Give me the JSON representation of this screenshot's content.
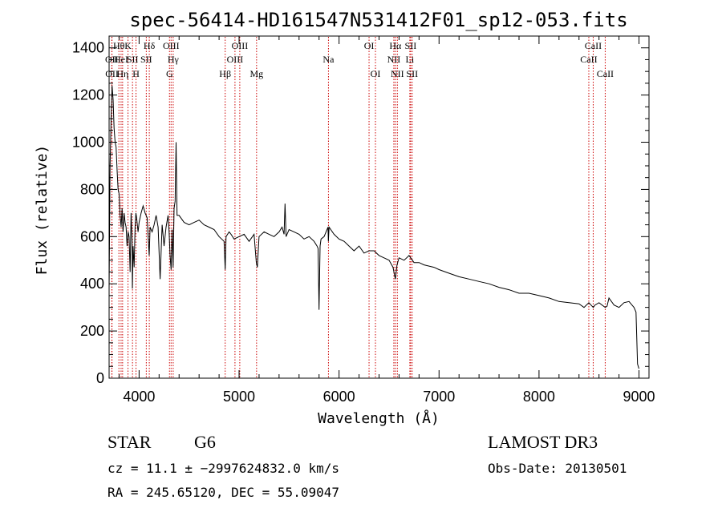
{
  "chart_data": {
    "type": "line",
    "title": "spec-56414-HD161547N531412F01_sp12-053.fits",
    "xlabel": "Wavelength (Å)",
    "ylabel": "Flux (relative)",
    "xlim": [
      3700,
      9100
    ],
    "ylim": [
      0,
      1450
    ],
    "xticks": [
      4000,
      5000,
      6000,
      7000,
      8000,
      9000
    ],
    "yticks": [
      0,
      200,
      400,
      600,
      800,
      1000,
      1200,
      1400
    ],
    "grid": false,
    "line_color": "#000000",
    "marker_color": "#cc0000",
    "spectrum": {
      "x": [
        3700,
        3710,
        3720,
        3730,
        3740,
        3750,
        3760,
        3770,
        3780,
        3790,
        3800,
        3810,
        3820,
        3830,
        3840,
        3850,
        3860,
        3870,
        3880,
        3890,
        3900,
        3910,
        3920,
        3930,
        3933,
        3940,
        3950,
        3960,
        3968,
        3975,
        3990,
        4000,
        4020,
        4040,
        4060,
        4080,
        4101,
        4110,
        4130,
        4150,
        4170,
        4190,
        4210,
        4230,
        4250,
        4270,
        4290,
        4300,
        4310,
        4320,
        4330,
        4340,
        4350,
        4360,
        4370,
        4380,
        4400,
        4450,
        4500,
        4550,
        4600,
        4650,
        4700,
        4750,
        4800,
        4850,
        4861,
        4870,
        4900,
        4920,
        4950,
        5000,
        5050,
        5100,
        5150,
        5172,
        5183,
        5200,
        5250,
        5300,
        5350,
        5400,
        5430,
        5450,
        5460,
        5470,
        5500,
        5550,
        5600,
        5650,
        5700,
        5750,
        5780,
        5790,
        5800,
        5810,
        5820,
        5850,
        5890,
        5893,
        5900,
        5950,
        6000,
        6050,
        6100,
        6150,
        6200,
        6250,
        6300,
        6350,
        6400,
        6450,
        6500,
        6540,
        6563,
        6580,
        6600,
        6650,
        6700,
        6750,
        6800,
        6850,
        6900,
        6950,
        7000,
        7100,
        7200,
        7300,
        7400,
        7500,
        7600,
        7700,
        7800,
        7900,
        8000,
        8100,
        8200,
        8300,
        8400,
        8450,
        8498,
        8520,
        8542,
        8560,
        8600,
        8662,
        8680,
        8700,
        8750,
        8800,
        8850,
        8900,
        8950,
        8970,
        8985,
        9000
      ],
      "y": [
        380,
        900,
        1100,
        1240,
        1180,
        1060,
        1000,
        980,
        880,
        800,
        780,
        690,
        640,
        720,
        620,
        700,
        660,
        640,
        560,
        620,
        600,
        450,
        700,
        580,
        380,
        560,
        470,
        640,
        700,
        680,
        620,
        660,
        700,
        730,
        700,
        680,
        520,
        640,
        620,
        650,
        690,
        640,
        420,
        650,
        560,
        640,
        690,
        620,
        520,
        460,
        630,
        470,
        720,
        750,
        1000,
        690,
        690,
        660,
        650,
        660,
        670,
        650,
        640,
        630,
        600,
        580,
        460,
        600,
        620,
        610,
        590,
        600,
        610,
        580,
        610,
        490,
        470,
        600,
        620,
        610,
        600,
        620,
        640,
        610,
        740,
        600,
        630,
        620,
        610,
        590,
        600,
        580,
        560,
        550,
        290,
        560,
        590,
        600,
        640,
        580,
        640,
        610,
        590,
        580,
        560,
        540,
        560,
        530,
        540,
        540,
        520,
        510,
        500,
        470,
        420,
        480,
        510,
        500,
        520,
        490,
        490,
        480,
        475,
        470,
        460,
        445,
        430,
        420,
        410,
        400,
        385,
        375,
        360,
        360,
        350,
        340,
        325,
        320,
        315,
        300,
        320,
        310,
        300,
        310,
        320,
        300,
        305,
        340,
        310,
        300,
        320,
        325,
        300,
        280,
        60,
        40
      ]
    },
    "lines": [
      {
        "label": "OII",
        "x": 3727,
        "row": 1
      },
      {
        "label": "OII",
        "x": 3729,
        "row": 2
      },
      {
        "label": "Hθ",
        "x": 3798,
        "row": 0
      },
      {
        "label": "HeI",
        "x": 3820,
        "row": 1
      },
      {
        "label": "Hη",
        "x": 3835,
        "row": 2
      },
      {
        "label": "K",
        "x": 3889,
        "row": 0
      },
      {
        "label": "SII",
        "x": 3934,
        "row": 1
      },
      {
        "label": "H",
        "x": 3969,
        "row": 2
      },
      {
        "label": "Hδ",
        "x": 4102,
        "row": 0
      },
      {
        "label": "SII",
        "x": 4072,
        "row": 1
      },
      {
        "label": "G",
        "x": 4304,
        "row": 2
      },
      {
        "label": "OIII",
        "x": 4320,
        "row": 0
      },
      {
        "label": "Hγ",
        "x": 4341,
        "row": 1
      },
      {
        "label": "Hβ",
        "x": 4861,
        "row": 2
      },
      {
        "label": "OIII",
        "x": 4959,
        "row": 1
      },
      {
        "label": "OIII",
        "x": 5007,
        "row": 0
      },
      {
        "label": "Mg",
        "x": 5175,
        "row": 2
      },
      {
        "label": "Na",
        "x": 5894,
        "row": 1
      },
      {
        "label": "OI",
        "x": 6300,
        "row": 0
      },
      {
        "label": "OI",
        "x": 6364,
        "row": 2
      },
      {
        "label": "NII",
        "x": 6548,
        "row": 1
      },
      {
        "label": "Hα",
        "x": 6563,
        "row": 0
      },
      {
        "label": "NII",
        "x": 6583,
        "row": 2
      },
      {
        "label": "Li",
        "x": 6708,
        "row": 1
      },
      {
        "label": "SII",
        "x": 6716,
        "row": 0
      },
      {
        "label": "SII",
        "x": 6731,
        "row": 2
      },
      {
        "label": "CaII",
        "x": 8498,
        "row": 1
      },
      {
        "label": "CaII",
        "x": 8542,
        "row": 0
      },
      {
        "label": "CaII",
        "x": 8662,
        "row": 2
      }
    ]
  },
  "info": {
    "object": "STAR",
    "subclass": "G6",
    "survey": "LAMOST DR3",
    "cz": "cz = 11.1 ± −2997624832.0 km/s",
    "obs_date": "Obs-Date: 20130501",
    "radec": "RA = 245.65120, DEC =  55.09047"
  }
}
